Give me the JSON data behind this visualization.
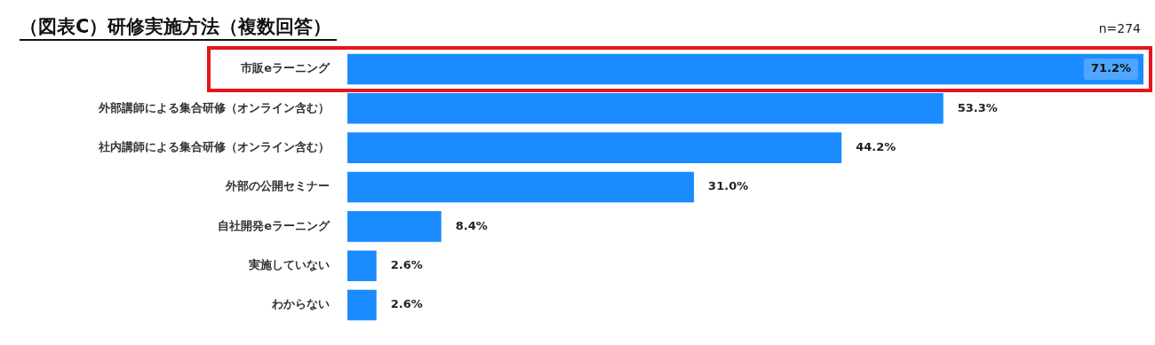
{
  "chart_data": {
    "type": "bar",
    "orientation": "horizontal",
    "title": "（図表C）研修実施方法（複数回答）",
    "annotations": [
      "n=274"
    ],
    "categories": [
      "市販eラーニング",
      "外部講師による集合研修（オンライン含む）",
      "社内講師による集合研修（オンライン含む）",
      "外部の公開セミナー",
      "自社開発eラーニング",
      "実施していない",
      "わからない"
    ],
    "values": [
      71.2,
      53.3,
      44.2,
      31.0,
      8.4,
      2.6,
      2.6
    ],
    "value_labels": [
      "71.2%",
      "53.3%",
      "44.2%",
      "31.0%",
      "8.4%",
      "2.6%",
      "2.6%"
    ],
    "color": "#1a8cff",
    "grid": false,
    "legend": false
  }
}
